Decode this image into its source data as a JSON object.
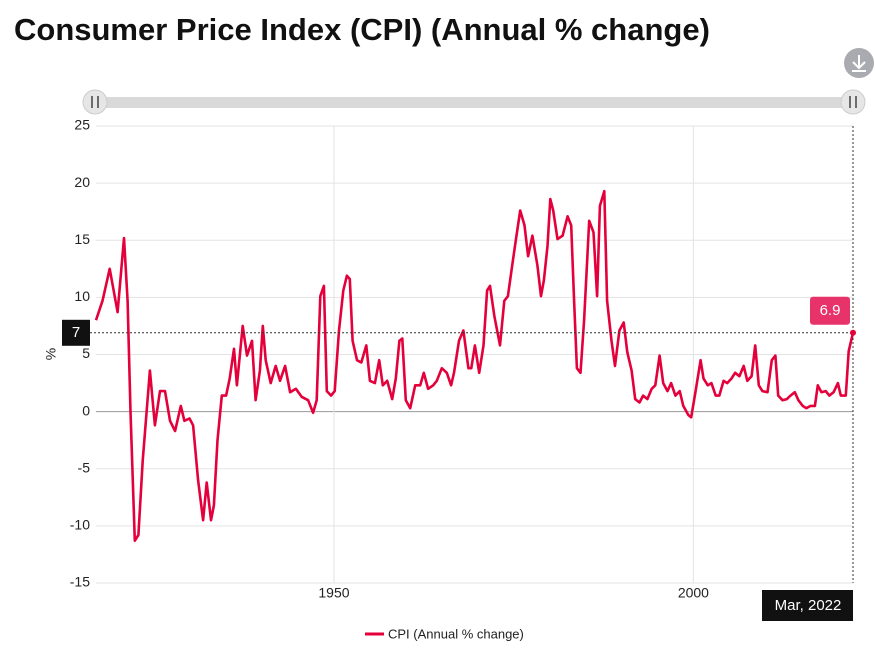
{
  "chart_data": {
    "type": "line",
    "title": "Consumer Price Index (CPI) (Annual % change)",
    "y_label": "%",
    "x": [
      1916.9,
      1917.8,
      1918.8,
      1919.9,
      1920.8,
      1921.3,
      1921.7,
      1922.3,
      1922.8,
      1923.4,
      1924.4,
      1925.1,
      1925.8,
      1926.5,
      1927.2,
      1927.9,
      1928.7,
      1929.2,
      1929.9,
      1930.4,
      1931.1,
      1931.8,
      1932.3,
      1932.9,
      1933.3,
      1933.8,
      1934.4,
      1935.0,
      1935.5,
      1936.1,
      1936.5,
      1937.3,
      1937.9,
      1938.6,
      1939.1,
      1939.7,
      1940.1,
      1940.5,
      1941.2,
      1941.9,
      1942.5,
      1943.2,
      1943.9,
      1944.7,
      1945.5,
      1946.4,
      1947.1,
      1947.6,
      1948.1,
      1948.6,
      1949.0,
      1949.6,
      1950.1,
      1950.7,
      1951.3,
      1951.8,
      1952.2,
      1952.6,
      1953.2,
      1953.8,
      1954.5,
      1955.0,
      1955.7,
      1956.3,
      1956.8,
      1957.4,
      1958.1,
      1958.6,
      1959.1,
      1959.5,
      1960.0,
      1960.6,
      1961.3,
      1962.0,
      1962.5,
      1963.1,
      1963.8,
      1964.3,
      1965.0,
      1965.7,
      1966.3,
      1966.7,
      1967.4,
      1968.0,
      1968.7,
      1969.1,
      1969.6,
      1970.2,
      1970.8,
      1971.3,
      1971.7,
      1972.3,
      1973.1,
      1973.7,
      1974.2,
      1974.8,
      1975.3,
      1975.9,
      1976.5,
      1977.0,
      1977.6,
      1978.3,
      1978.8,
      1979.2,
      1979.7,
      1980.1,
      1980.5,
      1981.1,
      1981.8,
      1982.5,
      1983.0,
      1983.4,
      1983.8,
      1984.3,
      1984.8,
      1985.5,
      1986.1,
      1986.6,
      1987.0,
      1987.6,
      1988.0,
      1988.6,
      1989.1,
      1989.7,
      1990.3,
      1990.8,
      1991.4,
      1991.9,
      1992.5,
      1993.0,
      1993.6,
      1994.2,
      1994.7,
      1995.3,
      1995.8,
      1996.4,
      1996.9,
      1997.5,
      1998.1,
      1998.6,
      1999.3,
      1999.7,
      2000.3,
      2001.0,
      2001.4,
      2002.0,
      2002.5,
      2003.1,
      2003.6,
      2004.2,
      2004.7,
      2005.3,
      2005.8,
      2006.4,
      2007.0,
      2007.5,
      2008.1,
      2008.6,
      2009.1,
      2009.6,
      2010.3,
      2010.9,
      2011.4,
      2011.8,
      2012.4,
      2013.0,
      2013.5,
      2014.1,
      2014.6,
      2015.2,
      2015.7,
      2016.3,
      2016.9,
      2017.3,
      2017.8,
      2018.4,
      2018.9,
      2019.5,
      2020.1,
      2020.5,
      2021.2,
      2021.6,
      2022.2
    ],
    "series": [
      {
        "name": "CPI (Annual % change)",
        "color": "#e4003b",
        "values": [
          8.0,
          9.7,
          12.5,
          8.7,
          15.2,
          9.7,
          0,
          -11.3,
          -10.8,
          -4.3,
          3.6,
          -1.2,
          1.8,
          1.8,
          -0.8,
          -1.7,
          0.5,
          -0.8,
          -0.6,
          -1.2,
          -6.0,
          -9.5,
          -6.2,
          -9.5,
          -8.2,
          -2.5,
          1.4,
          1.4,
          2.9,
          5.5,
          2.3,
          7.5,
          4.9,
          6.2,
          1.0,
          3.6,
          7.5,
          4.5,
          2.5,
          4.0,
          2.7,
          4.0,
          1.7,
          2.0,
          1.3,
          1.0,
          -0.1,
          1.0,
          10.1,
          11.0,
          1.8,
          1.4,
          1.8,
          7.1,
          10.6,
          11.9,
          11.6,
          6.2,
          4.5,
          4.3,
          5.8,
          2.7,
          2.5,
          4.5,
          2.3,
          2.7,
          1.1,
          2.9,
          6.2,
          6.4,
          1.0,
          0.3,
          2.3,
          2.3,
          3.4,
          2.0,
          2.3,
          2.7,
          3.8,
          3.4,
          2.3,
          3.4,
          6.2,
          7.1,
          3.8,
          3.8,
          5.8,
          3.4,
          5.8,
          10.6,
          11.0,
          8.4,
          5.8,
          9.7,
          10.1,
          12.8,
          15.0,
          17.6,
          16.3,
          13.6,
          15.4,
          12.8,
          10.1,
          11.5,
          14.5,
          18.6,
          17.6,
          15.1,
          15.4,
          17.1,
          16.3,
          9.7,
          3.8,
          3.4,
          8.0,
          16.7,
          15.7,
          10.1,
          18.0,
          19.3,
          9.7,
          6.2,
          4.0,
          7.1,
          7.8,
          5.2,
          3.6,
          1.1,
          0.8,
          1.4,
          1.1,
          2.0,
          2.3,
          4.9,
          2.5,
          1.8,
          2.5,
          1.4,
          1.8,
          0.5,
          -0.3,
          -0.5,
          1.8,
          4.5,
          2.9,
          2.3,
          2.5,
          1.4,
          1.4,
          2.7,
          2.5,
          2.9,
          3.4,
          3.1,
          4.0,
          2.7,
          3.1,
          5.8,
          2.3,
          1.8,
          1.7,
          4.5,
          4.9,
          1.4,
          1.0,
          1.1,
          1.4,
          1.7,
          1.0,
          0.5,
          0.3,
          0.5,
          0.5,
          2.3,
          1.7,
          1.8,
          1.4,
          1.7,
          2.5,
          1.4,
          1.4,
          5.3,
          6.9
        ]
      }
    ],
    "xlim": [
      1916.9,
      2022.2
    ],
    "xticks": [
      1950,
      2000
    ],
    "ylim": [
      -15,
      25
    ],
    "yticks": [
      -15,
      -10,
      -5,
      0,
      5,
      10,
      15,
      20,
      25
    ],
    "grid": true,
    "legend": "bottom",
    "hover": {
      "x_label": "Mar, 2022",
      "y_label": "7",
      "value_label": "6.9"
    }
  }
}
